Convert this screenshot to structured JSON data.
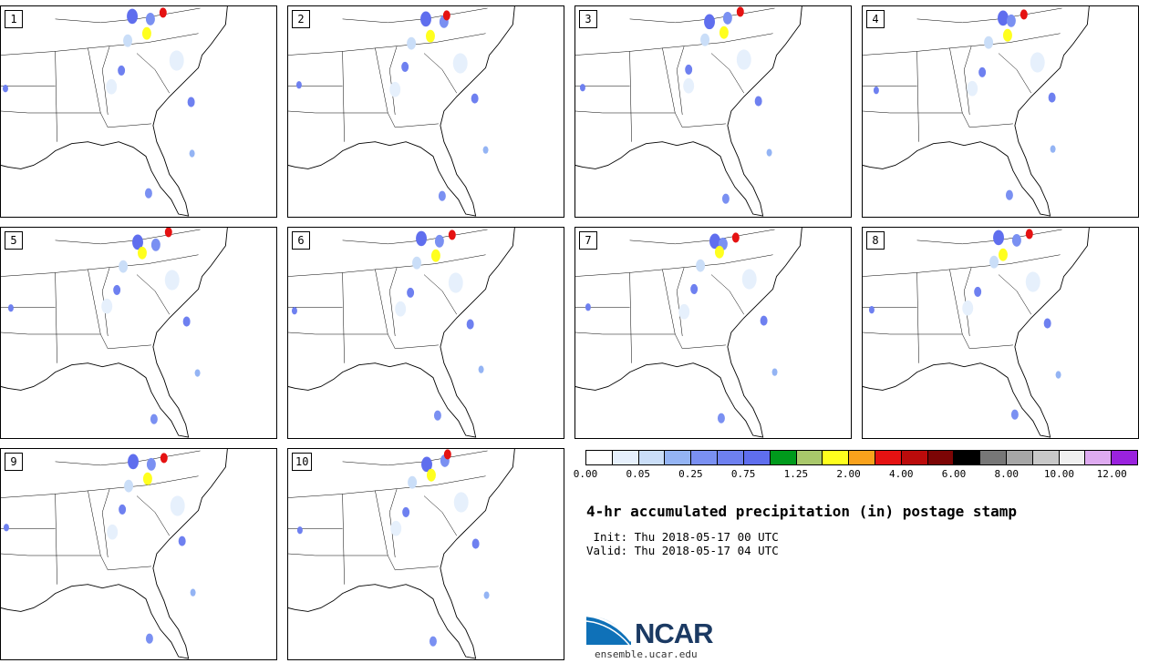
{
  "panels": [
    {
      "label": "1"
    },
    {
      "label": "2"
    },
    {
      "label": "3"
    },
    {
      "label": "4"
    },
    {
      "label": "5"
    },
    {
      "label": "6"
    },
    {
      "label": "7"
    },
    {
      "label": "8"
    },
    {
      "label": "9"
    },
    {
      "label": "10"
    }
  ],
  "colorbar": {
    "colors": [
      "#ffffff",
      "#e6f0fc",
      "#cadef8",
      "#94b4f4",
      "#7a90f2",
      "#6e80f0",
      "#5f6eee",
      "#009a1c",
      "#a9c86b",
      "#ffff1e",
      "#f9a21c",
      "#e51212",
      "#bb0b0b",
      "#7c0505",
      "#000000",
      "#777777",
      "#a6a6a6",
      "#c8c8c8",
      "#efefef",
      "#deaaf0",
      "#9a22de"
    ],
    "tick_labels": [
      "0.00",
      "0.05",
      "0.25",
      "0.75",
      "1.25",
      "2.00",
      "4.00",
      "6.00",
      "8.00",
      "10.00",
      "12.00"
    ]
  },
  "title": "4-hr accumulated precipitation (in) postage stamp",
  "init_line": " Init: Thu 2018-05-17 00 UTC",
  "valid_line": "Valid: Thu 2018-05-17 04 UTC",
  "logo": {
    "name": "NCAR",
    "url": "ensemble.ucar.edu",
    "icon": "ncar-swoosh-logo"
  }
}
